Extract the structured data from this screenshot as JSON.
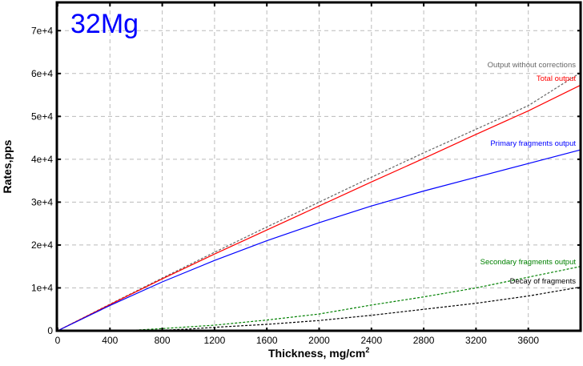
{
  "chart_data": {
    "type": "line",
    "title": "32Mg",
    "xlabel": "Thickness, mg/cm",
    "xlabel_superscript": "2",
    "ylabel": "Rates,pps",
    "xlim": [
      0,
      4000
    ],
    "ylim": [
      0,
      76400
    ],
    "grid": true,
    "x_ticks": [
      0,
      400,
      800,
      1200,
      1600,
      2000,
      2400,
      2800,
      3200,
      3600
    ],
    "x_tick_labels": [
      "0",
      "400",
      "800",
      "1200",
      "1600",
      "2000",
      "2400",
      "2800",
      "3200",
      "3600"
    ],
    "y_ticks": [
      0,
      10000,
      20000,
      30000,
      40000,
      50000,
      60000,
      70000
    ],
    "y_tick_labels": [
      "0",
      "1e+4",
      "2e+4",
      "3e+4",
      "4e+4",
      "5e+4",
      "6e+4",
      "7e+4"
    ],
    "series": [
      {
        "name": "Output without corrections",
        "color": "#666666",
        "dash": true,
        "x": [
          0,
          400,
          800,
          1200,
          1600,
          2000,
          2400,
          2800,
          3200,
          3600,
          4000
        ],
        "y": [
          0,
          6200,
          12300,
          18300,
          24200,
          30000,
          35800,
          41500,
          47000,
          52500,
          60200
        ]
      },
      {
        "name": "Total output",
        "color": "#ff0000",
        "dash": false,
        "x": [
          0,
          400,
          800,
          1200,
          1600,
          2000,
          2400,
          2800,
          3200,
          3600,
          4000
        ],
        "y": [
          0,
          6100,
          12100,
          17900,
          23500,
          29100,
          34700,
          40200,
          45800,
          51300,
          57300
        ]
      },
      {
        "name": "Primary fragments output",
        "color": "#0000ff",
        "dash": false,
        "x": [
          0,
          400,
          800,
          1200,
          1600,
          2000,
          2400,
          2800,
          3200,
          3600,
          4000
        ],
        "y": [
          0,
          5900,
          11400,
          16400,
          21000,
          25200,
          29100,
          32600,
          35800,
          39000,
          42200
        ]
      },
      {
        "name": "Secondary fragments output",
        "color": "#008000",
        "dash": true,
        "x": [
          500,
          800,
          1200,
          1600,
          2000,
          2400,
          2800,
          3200,
          3600,
          4000
        ],
        "y": [
          0,
          500,
          1300,
          2500,
          3900,
          6000,
          7900,
          10000,
          12500,
          15000
        ]
      },
      {
        "name": "Decay of fragments",
        "color": "#000000",
        "dash": true,
        "x": [
          700,
          1000,
          1200,
          1600,
          2000,
          2400,
          2800,
          3200,
          3600,
          4000
        ],
        "y": [
          0,
          400,
          800,
          1500,
          2400,
          3600,
          5000,
          6400,
          8100,
          10200
        ]
      }
    ]
  }
}
